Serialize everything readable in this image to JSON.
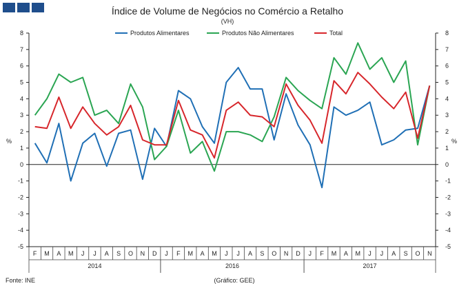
{
  "chart_data": {
    "type": "line",
    "title": "Índice de Volume de Negócios no Comércio a Retalho",
    "subtitle": "(VH)",
    "ylabel_left": "%",
    "ylabel_right": "%",
    "ylim": [
      -5,
      8
    ],
    "yticks": [
      8,
      7,
      6,
      5,
      4,
      3,
      2,
      1,
      0,
      -1,
      -2,
      -3,
      -4,
      -5
    ],
    "months": [
      "F",
      "M",
      "A",
      "M",
      "J",
      "J",
      "A",
      "S",
      "O",
      "N",
      "D",
      "J",
      "F",
      "M",
      "A",
      "M",
      "J",
      "J",
      "A",
      "S",
      "O",
      "N",
      "D",
      "J",
      "F",
      "M",
      "A",
      "M",
      "J",
      "J",
      "A",
      "S",
      "O",
      "N"
    ],
    "years": [
      {
        "label": "2014",
        "start": 0,
        "end": 10
      },
      {
        "label": "2016",
        "start": 11,
        "end": 22
      },
      {
        "label": "2017",
        "start": 23,
        "end": 33
      }
    ],
    "series": [
      {
        "name": "Produtos Alimentares",
        "color": "#1f6fb5",
        "values": [
          1.3,
          0.1,
          2.5,
          -1.0,
          1.3,
          1.9,
          -0.1,
          1.9,
          2.1,
          -0.9,
          2.2,
          1.1,
          4.5,
          4.0,
          2.3,
          1.3,
          5.0,
          5.9,
          4.6,
          4.6,
          1.5,
          4.3,
          2.4,
          1.2,
          -1.4,
          3.5,
          3.0,
          3.3,
          3.8,
          1.2,
          1.5,
          2.1,
          2.2,
          4.8
        ]
      },
      {
        "name": "Produtos Não Alimentares",
        "color": "#2aa552",
        "values": [
          3.0,
          4.0,
          5.5,
          5.0,
          5.3,
          3.0,
          3.3,
          2.5,
          4.9,
          3.5,
          0.3,
          1.1,
          3.3,
          0.7,
          1.4,
          -0.4,
          2.0,
          2.0,
          1.8,
          1.4,
          2.9,
          5.3,
          4.5,
          3.9,
          3.4,
          6.5,
          5.5,
          7.4,
          5.8,
          6.5,
          5.0,
          6.3,
          1.2,
          4.8
        ]
      },
      {
        "name": "Total",
        "color": "#d7262b",
        "values": [
          2.3,
          2.2,
          4.1,
          2.2,
          3.5,
          2.5,
          1.8,
          2.3,
          3.6,
          1.5,
          1.2,
          1.2,
          3.9,
          2.1,
          1.8,
          0.4,
          3.3,
          3.8,
          3.0,
          2.9,
          2.3,
          4.9,
          3.6,
          2.7,
          1.3,
          5.1,
          4.3,
          5.6,
          4.9,
          4.1,
          3.4,
          4.4,
          1.6,
          4.8
        ]
      }
    ]
  },
  "footer": {
    "source": "Fonte: INE",
    "credit": "(Gráfico: GEE)"
  }
}
